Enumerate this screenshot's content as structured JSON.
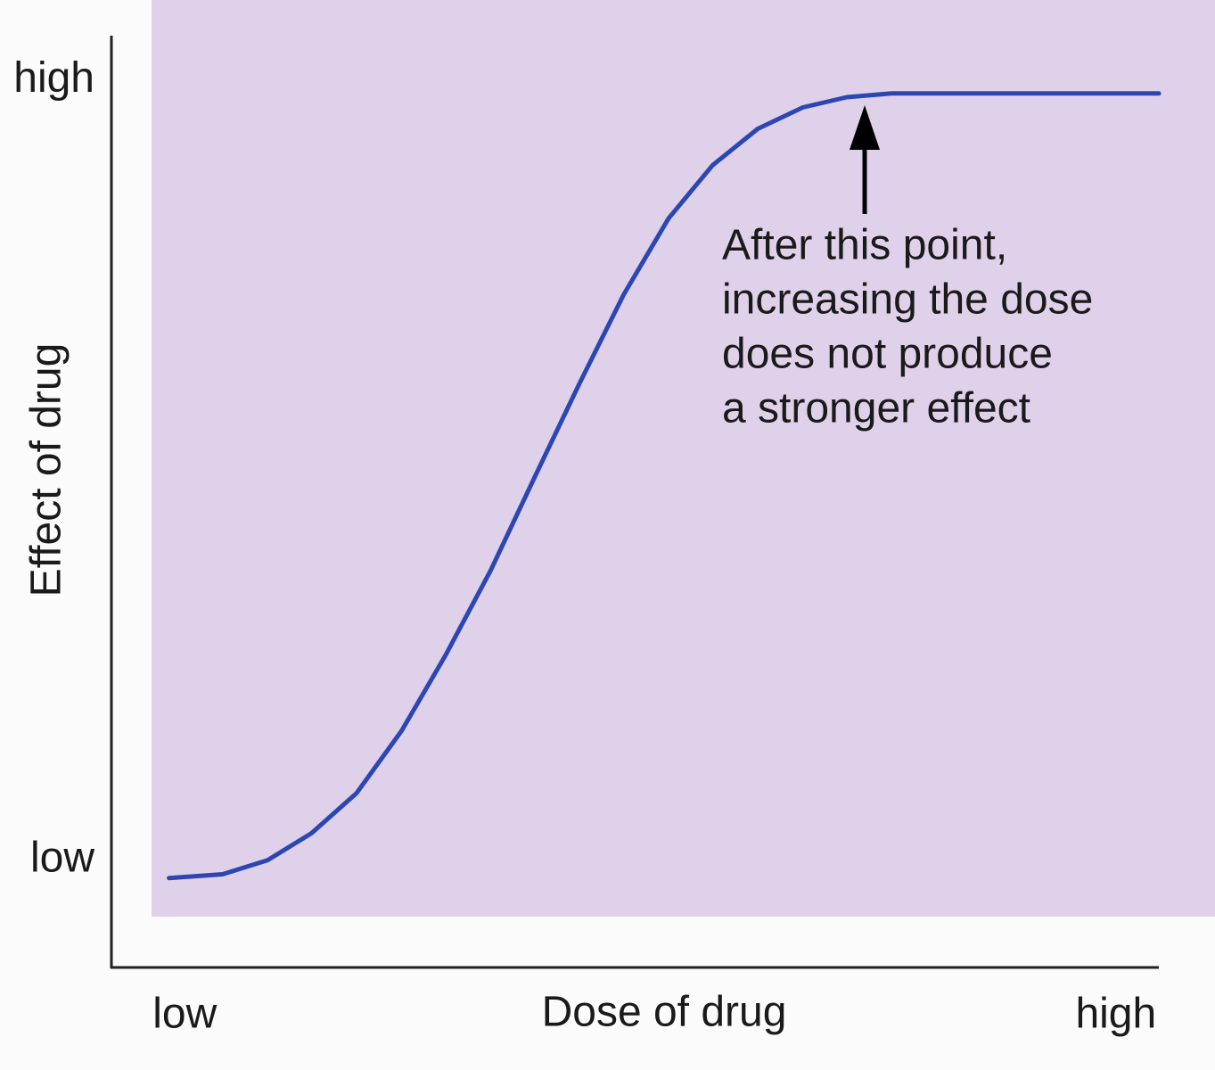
{
  "chart_data": {
    "type": "line",
    "x_label": "Dose of drug",
    "y_label": "Effect of drug",
    "x": [
      5.5,
      10.6,
      14.9,
      19.1,
      23.4,
      27.7,
      31.9,
      36.2,
      40.4,
      44.7,
      48.9,
      53.2,
      57.4,
      61.7,
      66.0,
      70.2,
      74.5,
      100
    ],
    "values": [
      9.6,
      10.0,
      11.5,
      14.4,
      18.7,
      25.4,
      33.5,
      42.6,
      52.6,
      62.7,
      72.2,
      80.4,
      86.1,
      90.0,
      92.3,
      93.4,
      93.8,
      93.8
    ],
    "color": "#2c46b2",
    "xlim": [
      0,
      100
    ],
    "ylim": [
      0,
      100
    ],
    "xticks": [
      {
        "value": 7.0,
        "label": "low"
      },
      {
        "value": 95.9,
        "label": "high"
      }
    ],
    "yticks": [
      {
        "value": 11.5,
        "label": "low"
      },
      {
        "value": 95.2,
        "label": "high"
      }
    ],
    "annotation": [
      "After this point,",
      "increasing the dose",
      "does not produce",
      "a stronger effect"
    ]
  }
}
